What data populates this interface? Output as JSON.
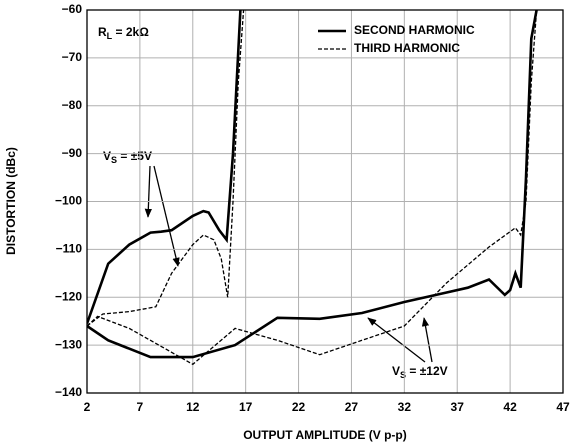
{
  "chart_data": {
    "type": "line",
    "x_label": "OUTPUT AMPLITUDE (V p-p)",
    "y_label": "DISTORTION (dBc)",
    "xlim": [
      2,
      47
    ],
    "xticks": [
      2,
      7,
      12,
      17,
      22,
      27,
      32,
      37,
      42,
      47
    ],
    "ylim": [
      -140,
      -60
    ],
    "yticks": [
      {
        "value": -60,
        "label": "−60"
      },
      {
        "value": -70,
        "label": "−70"
      },
      {
        "value": -80,
        "label": "−80"
      },
      {
        "value": -90,
        "label": "−90"
      },
      {
        "value": -100,
        "label": "−100"
      },
      {
        "value": -110,
        "label": "−110"
      },
      {
        "value": -120,
        "label": "−120"
      },
      {
        "value": -130,
        "label": "−130"
      },
      {
        "value": -140,
        "label": "−140"
      }
    ],
    "grid": true,
    "legend": "top-right",
    "series": [
      {
        "name": "SECOND HARMONIC",
        "color": "#000000",
        "dash": false,
        "curves": [
          {
            "x": [
              2,
              4,
              6,
              8,
              9,
              10,
              12,
              13,
              13.5,
              14.5,
              15.2,
              15.8,
              16.5
            ],
            "values": [
              -125.5,
              -113,
              -109,
              -106.5,
              -106.3,
              -106,
              -103,
              -102,
              -102.3,
              -106,
              -108,
              -90,
              -60
            ]
          },
          {
            "x": [
              2,
              4,
              8,
              12,
              16,
              20,
              24,
              28,
              32,
              36,
              38,
              40,
              41.5,
              42,
              42.5,
              43,
              43.5,
              44,
              44.5
            ],
            "values": [
              -126,
              -129,
              -132.5,
              -132.5,
              -130,
              -124.3,
              -124.5,
              -123.3,
              -121,
              -119,
              -118,
              -116.3,
              -119.5,
              -118.5,
              -115,
              -118,
              -95,
              -66,
              -60
            ]
          }
        ]
      },
      {
        "name": "THIRD HARMONIC",
        "color": "#000000",
        "dash": true,
        "curves": [
          {
            "x": [
              2,
              3.5,
              6,
              8.5,
              10,
              12,
              13,
              14,
              14.7,
              15.3,
              15.8,
              16.3,
              16.8
            ],
            "values": [
              -126,
              -123.5,
              -123,
              -122,
              -115,
              -109,
              -107,
              -108,
              -112,
              -120,
              -100,
              -75,
              -60
            ]
          },
          {
            "x": [
              2,
              3,
              6,
              12,
              16,
              20,
              24,
              28,
              32,
              36,
              40,
              42.5,
              43,
              43.5,
              44,
              44.5
            ],
            "values": [
              -126,
              -124,
              -126.5,
              -134,
              -126.5,
              -129,
              -132,
              -129,
              -126,
              -117,
              -109.5,
              -105.5,
              -107,
              -100,
              -75,
              -60
            ]
          }
        ]
      }
    ],
    "annotations": [
      {
        "text": "R",
        "sub": "L",
        "rest": " = 2kΩ"
      },
      {
        "text": "V",
        "sub": "S",
        "rest": " = ±5V"
      },
      {
        "text": "V",
        "sub": "S",
        "rest": " = ±12V"
      }
    ]
  }
}
